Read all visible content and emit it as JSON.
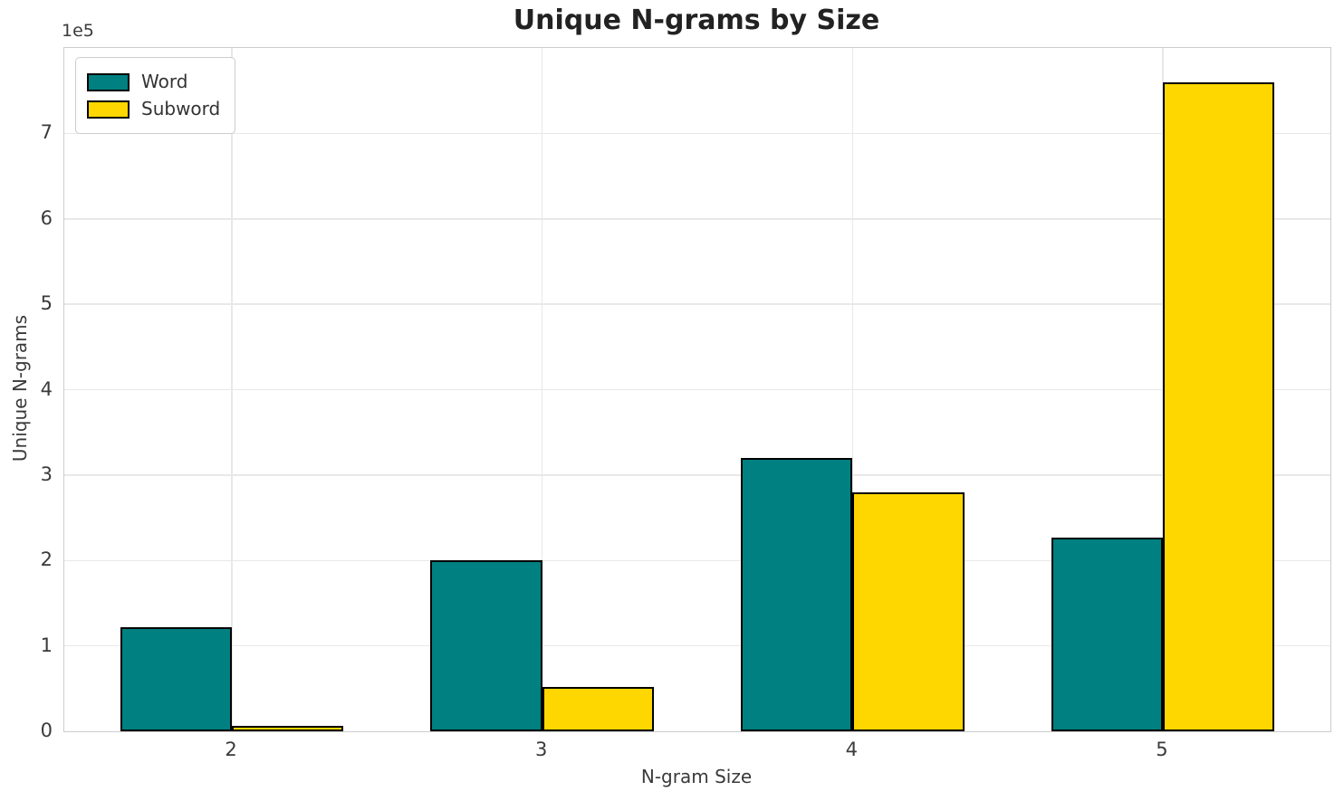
{
  "chart_data": {
    "type": "bar",
    "title": "Unique N-grams by Size",
    "xlabel": "N-gram Size",
    "ylabel": "Unique N-grams",
    "y_offset_text": "1e5",
    "categories": [
      "2",
      "3",
      "4",
      "5"
    ],
    "series": [
      {
        "name": "Word",
        "color": "#008080",
        "values": [
          122000,
          200000,
          320000,
          227000
        ]
      },
      {
        "name": "Subword",
        "color": "#FFD700",
        "values": [
          6000,
          52000,
          280000,
          760000
        ]
      }
    ],
    "bar_edge_color": "#000000",
    "bar_width_units": 0.36,
    "xlim": [
      -0.54,
      3.54
    ],
    "ylim": [
      0,
      800000
    ],
    "ytick_values": [
      0,
      100000,
      200000,
      300000,
      400000,
      500000,
      600000,
      700000
    ],
    "ytick_labels": [
      "0",
      "1",
      "2",
      "3",
      "4",
      "5",
      "6",
      "7"
    ],
    "grid": true,
    "legend": {
      "position": "upper left",
      "entries": [
        "Word",
        "Subword"
      ]
    }
  },
  "colors": {
    "background": "#ffffff",
    "grid": "#e8e8e8",
    "spine": "#cccccc",
    "tick_text": "#3a3a3a",
    "title_text": "#222222"
  }
}
